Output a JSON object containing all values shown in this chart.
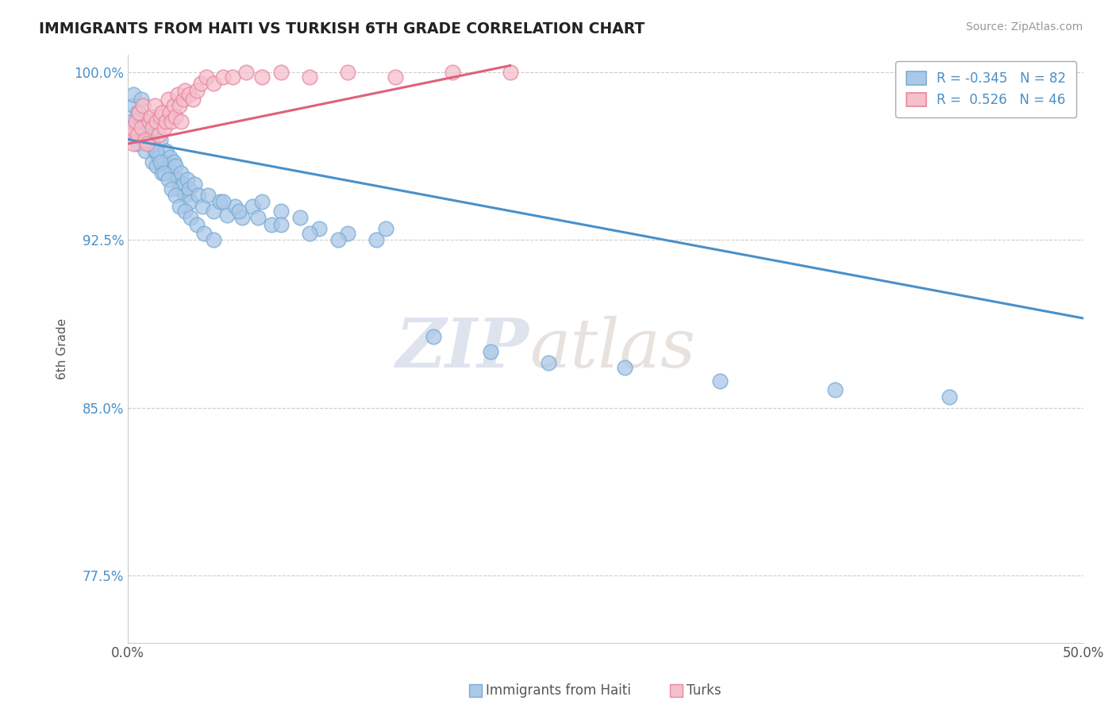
{
  "title": "IMMIGRANTS FROM HAITI VS TURKISH 6TH GRADE CORRELATION CHART",
  "source_text": "Source: ZipAtlas.com",
  "ylabel": "6th Grade",
  "x_min": 0.0,
  "x_max": 0.5,
  "y_min": 0.745,
  "y_max": 1.008,
  "yticks": [
    0.775,
    0.85,
    0.925,
    1.0
  ],
  "ytick_labels": [
    "77.5%",
    "85.0%",
    "92.5%",
    "100.0%"
  ],
  "xticks": [
    0.0,
    0.5
  ],
  "xtick_labels": [
    "0.0%",
    "50.0%"
  ],
  "blue_R": -0.345,
  "blue_N": 82,
  "pink_R": 0.526,
  "pink_N": 46,
  "blue_color": "#aac8e8",
  "blue_edge": "#7aadd4",
  "pink_color": "#f5bfcc",
  "pink_edge": "#e888a0",
  "blue_line_color": "#4a90c8",
  "pink_line_color": "#e0607a",
  "legend_blue_label": "Immigrants from Haiti",
  "legend_pink_label": "Turks",
  "watermark_zip": "ZIP",
  "watermark_atlas": "atlas",
  "blue_scatter_x": [
    0.002,
    0.003,
    0.004,
    0.005,
    0.006,
    0.007,
    0.008,
    0.009,
    0.01,
    0.011,
    0.012,
    0.013,
    0.014,
    0.015,
    0.016,
    0.017,
    0.018,
    0.019,
    0.02,
    0.021,
    0.022,
    0.023,
    0.024,
    0.025,
    0.026,
    0.027,
    0.028,
    0.029,
    0.03,
    0.031,
    0.032,
    0.033,
    0.035,
    0.037,
    0.039,
    0.042,
    0.045,
    0.048,
    0.052,
    0.056,
    0.06,
    0.065,
    0.07,
    0.075,
    0.08,
    0.09,
    0.1,
    0.115,
    0.13,
    0.003,
    0.005,
    0.007,
    0.009,
    0.011,
    0.013,
    0.015,
    0.017,
    0.019,
    0.021,
    0.023,
    0.025,
    0.027,
    0.03,
    0.033,
    0.036,
    0.04,
    0.045,
    0.05,
    0.058,
    0.068,
    0.08,
    0.095,
    0.11,
    0.135,
    0.16,
    0.19,
    0.22,
    0.26,
    0.31,
    0.37,
    0.43
  ],
  "blue_scatter_y": [
    0.978,
    0.985,
    0.972,
    0.968,
    0.975,
    0.98,
    0.97,
    0.965,
    0.975,
    0.968,
    0.972,
    0.96,
    0.965,
    0.958,
    0.962,
    0.97,
    0.955,
    0.96,
    0.965,
    0.958,
    0.962,
    0.955,
    0.96,
    0.958,
    0.952,
    0.948,
    0.955,
    0.95,
    0.945,
    0.952,
    0.948,
    0.942,
    0.95,
    0.945,
    0.94,
    0.945,
    0.938,
    0.942,
    0.936,
    0.94,
    0.935,
    0.94,
    0.942,
    0.932,
    0.938,
    0.935,
    0.93,
    0.928,
    0.925,
    0.99,
    0.982,
    0.988,
    0.975,
    0.97,
    0.968,
    0.965,
    0.96,
    0.955,
    0.952,
    0.948,
    0.945,
    0.94,
    0.938,
    0.935,
    0.932,
    0.928,
    0.925,
    0.942,
    0.938,
    0.935,
    0.932,
    0.928,
    0.925,
    0.93,
    0.882,
    0.875,
    0.87,
    0.868,
    0.862,
    0.858,
    0.855
  ],
  "pink_scatter_x": [
    0.001,
    0.002,
    0.003,
    0.004,
    0.005,
    0.006,
    0.007,
    0.008,
    0.009,
    0.01,
    0.011,
    0.012,
    0.013,
    0.014,
    0.015,
    0.016,
    0.017,
    0.018,
    0.019,
    0.02,
    0.021,
    0.022,
    0.023,
    0.024,
    0.025,
    0.026,
    0.027,
    0.028,
    0.029,
    0.03,
    0.032,
    0.034,
    0.036,
    0.038,
    0.041,
    0.045,
    0.05,
    0.055,
    0.062,
    0.07,
    0.08,
    0.095,
    0.115,
    0.14,
    0.17,
    0.2
  ],
  "pink_scatter_y": [
    0.972,
    0.975,
    0.968,
    0.978,
    0.972,
    0.982,
    0.975,
    0.985,
    0.97,
    0.968,
    0.978,
    0.98,
    0.975,
    0.985,
    0.978,
    0.972,
    0.98,
    0.982,
    0.975,
    0.978,
    0.988,
    0.982,
    0.978,
    0.985,
    0.98,
    0.99,
    0.985,
    0.978,
    0.988,
    0.992,
    0.99,
    0.988,
    0.992,
    0.995,
    0.998,
    0.995,
    0.998,
    0.998,
    1.0,
    0.998,
    1.0,
    0.998,
    1.0,
    0.998,
    1.0,
    1.0
  ],
  "blue_trend_x0": 0.0,
  "blue_trend_y0": 0.97,
  "blue_trend_x1": 0.5,
  "blue_trend_y1": 0.89,
  "pink_trend_x0": 0.0,
  "pink_trend_y0": 0.968,
  "pink_trend_x1": 0.2,
  "pink_trend_y1": 1.003
}
